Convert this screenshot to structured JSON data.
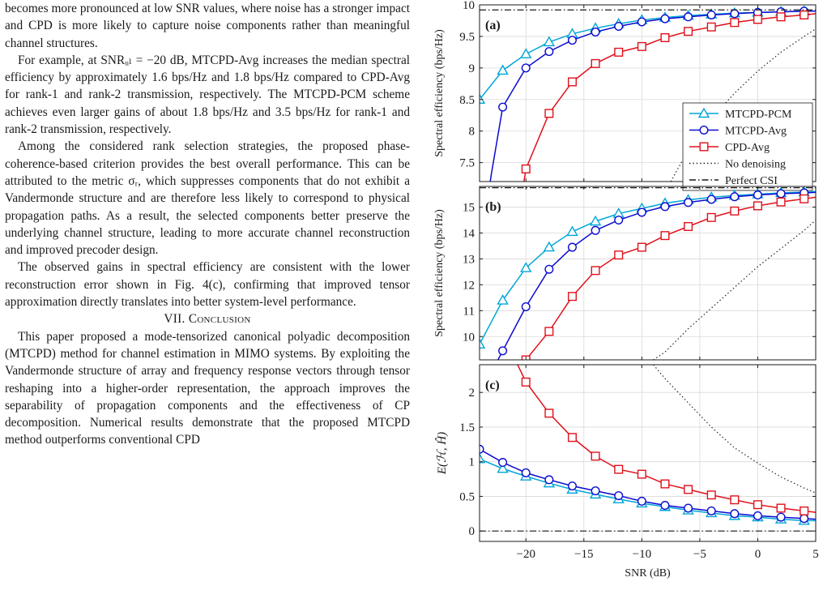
{
  "text": {
    "p0": "becomes more pronounced at low SNR values, where noise has a stronger impact and CPD is more likely to capture noise components rather than meaningful channel structures.",
    "p1": "For example, at SNRᵤₗ = −20 dB, MTCPD-Avg increases the median spectral efficiency by approximately 1.6 bps/Hz and 1.8 bps/Hz compared to CPD-Avg for rank-1 and rank-2 transmission, respectively. The MTCPD-PCM scheme achieves even larger gains of about 1.8 bps/Hz and 3.5 bps/Hz for rank-1 and rank-2 transmission, respectively.",
    "p2": "Among the considered rank selection strategies, the proposed phase-coherence-based criterion provides the best overall performance. This can be attributed to the metric σᵣ, which suppresses components that do not exhibit a Vandermonde structure and are therefore less likely to correspond to physical propagation paths. As a result, the selected components better preserve the underlying channel structure, leading to more accurate channel reconstruction and improved precoder design.",
    "p3": "The observed gains in spectral efficiency are consistent with the lower reconstruction error shown in Fig. 4(c), confirming that improved tensor approximation directly translates into better system-level performance.",
    "section_num": "VII.",
    "section_title": "Conclusion",
    "p4": "This paper proposed a mode-tensorized canonical polyadic decomposition (MTCPD) method for channel estimation in MIMO systems. By exploiting the Vandermonde structure of array and frequency response vectors through tensor reshaping into a higher-order representation, the approach improves the separability of propagation components and the effectiveness of CP decomposition. Numerical results demonstrate that the proposed MTCPD method outperforms conventional CPD"
  },
  "chart_data": [
    {
      "type": "line",
      "panel": "(a)",
      "ylabel": "Spectral efficiency (bps/Hz)",
      "xlim": [
        -24,
        5
      ],
      "ylim": [
        7.2,
        10
      ],
      "yticks": [
        7.5,
        8,
        8.5,
        9,
        9.5,
        10
      ],
      "grid": true,
      "legend": "right",
      "series": [
        {
          "name": "MTCPD-PCM",
          "x": [
            -24,
            -22,
            -20,
            -18,
            -16,
            -14,
            -12,
            -10,
            -8,
            -6,
            -4,
            -2,
            0,
            2,
            4,
            5
          ],
          "y": [
            8.5,
            8.96,
            9.22,
            9.41,
            9.54,
            9.63,
            9.7,
            9.76,
            9.8,
            9.83,
            9.85,
            9.87,
            9.88,
            9.89,
            9.9,
            9.9
          ]
        },
        {
          "name": "MTCPD-Avg",
          "x": [
            -24,
            -23,
            -22,
            -20,
            -18,
            -16,
            -14,
            -12,
            -10,
            -8,
            -6,
            -4,
            -2,
            0,
            2,
            4,
            5
          ],
          "y": [
            6.0,
            7.3,
            8.38,
            9.0,
            9.26,
            9.44,
            9.57,
            9.66,
            9.73,
            9.78,
            9.81,
            9.84,
            9.86,
            9.88,
            9.89,
            9.9,
            9.9
          ]
        },
        {
          "name": "CPD-Avg",
          "x": [
            -21,
            -20,
            -18,
            -16,
            -14,
            -12,
            -10,
            -8,
            -6,
            -4,
            -2,
            0,
            2,
            4,
            5
          ],
          "y": [
            6.2,
            7.4,
            8.28,
            8.78,
            9.07,
            9.25,
            9.34,
            9.48,
            9.58,
            9.65,
            9.72,
            9.77,
            9.81,
            9.84,
            9.86
          ]
        },
        {
          "name": "No denoising",
          "x": [
            -7.5,
            -6,
            -4,
            -2,
            0,
            2,
            4,
            5
          ],
          "y": [
            7.2,
            7.7,
            8.2,
            8.6,
            8.95,
            9.25,
            9.5,
            9.62
          ]
        },
        {
          "name": "Perfect CSI",
          "x": [
            -24,
            5
          ],
          "y": [
            9.92,
            9.92
          ]
        }
      ]
    },
    {
      "type": "line",
      "panel": "(b)",
      "ylabel": "Spectral efficiency (bps/Hz)",
      "xlim": [
        -24,
        5
      ],
      "ylim": [
        9.1,
        15.8
      ],
      "yticks": [
        10,
        11,
        12,
        13,
        14,
        15
      ],
      "grid": true,
      "series": [
        {
          "name": "MTCPD-PCM",
          "x": [
            -24,
            -22,
            -20,
            -18,
            -16,
            -14,
            -12,
            -10,
            -8,
            -6,
            -4,
            -2,
            0,
            2,
            4,
            5
          ],
          "y": [
            9.7,
            11.4,
            12.65,
            13.45,
            14.05,
            14.45,
            14.75,
            14.95,
            15.15,
            15.28,
            15.38,
            15.45,
            15.5,
            15.55,
            15.58,
            15.6
          ]
        },
        {
          "name": "MTCPD-Avg",
          "x": [
            -23,
            -22,
            -20,
            -18,
            -16,
            -14,
            -12,
            -10,
            -8,
            -6,
            -4,
            -2,
            0,
            2,
            4,
            5
          ],
          "y": [
            8.6,
            9.45,
            11.15,
            12.6,
            13.45,
            14.1,
            14.5,
            14.8,
            15.02,
            15.18,
            15.3,
            15.4,
            15.47,
            15.52,
            15.55,
            15.57
          ]
        },
        {
          "name": "CPD-Avg",
          "x": [
            -20.5,
            -20,
            -18,
            -16,
            -14,
            -12,
            -10,
            -8,
            -6,
            -4,
            -2,
            0,
            2,
            4,
            5
          ],
          "y": [
            8.7,
            9.1,
            10.2,
            11.55,
            12.55,
            13.15,
            13.45,
            13.9,
            14.25,
            14.6,
            14.85,
            15.05,
            15.2,
            15.32,
            15.38
          ]
        },
        {
          "name": "No denoising",
          "x": [
            -9,
            -8,
            -6,
            -4,
            -2,
            0,
            2,
            4,
            5
          ],
          "y": [
            9.1,
            9.4,
            10.3,
            11.1,
            11.9,
            12.7,
            13.4,
            14.1,
            14.5
          ]
        },
        {
          "name": "Perfect CSI",
          "x": [
            -24,
            5
          ],
          "y": [
            15.75,
            15.75
          ]
        }
      ]
    },
    {
      "type": "line",
      "panel": "(c)",
      "ylabel": "E(ℋ, Ĥ)",
      "xlabel": "SNR (dB)",
      "xlim": [
        -24,
        5
      ],
      "ylim": [
        -0.15,
        2.4
      ],
      "xticks": [
        -20,
        -15,
        -10,
        -5,
        0,
        5
      ],
      "yticks": [
        0,
        0.5,
        1,
        1.5,
        2
      ],
      "grid": true,
      "series": [
        {
          "name": "MTCPD-PCM",
          "x": [
            -24,
            -22,
            -20,
            -18,
            -16,
            -14,
            -12,
            -10,
            -8,
            -6,
            -4,
            -2,
            0,
            2,
            4,
            5
          ],
          "y": [
            1.04,
            0.9,
            0.79,
            0.69,
            0.6,
            0.53,
            0.46,
            0.4,
            0.35,
            0.3,
            0.26,
            0.22,
            0.2,
            0.17,
            0.15,
            0.15
          ]
        },
        {
          "name": "MTCPD-Avg",
          "x": [
            -24,
            -22,
            -20,
            -18,
            -16,
            -14,
            -12,
            -10,
            -8,
            -6,
            -4,
            -2,
            0,
            2,
            4,
            5
          ],
          "y": [
            1.18,
            0.99,
            0.84,
            0.74,
            0.65,
            0.58,
            0.51,
            0.43,
            0.37,
            0.33,
            0.29,
            0.25,
            0.22,
            0.2,
            0.18,
            0.17
          ]
        },
        {
          "name": "CPD-Avg",
          "x": [
            -21,
            -20,
            -18,
            -16,
            -14,
            -12,
            -10,
            -8,
            -6,
            -4,
            -2,
            0,
            2,
            4,
            5
          ],
          "y": [
            2.5,
            2.15,
            1.7,
            1.35,
            1.08,
            0.89,
            0.82,
            0.68,
            0.6,
            0.52,
            0.45,
            0.38,
            0.33,
            0.29,
            0.27
          ]
        },
        {
          "name": "No denoising",
          "x": [
            -9,
            -8,
            -6,
            -4,
            -2,
            0,
            2,
            4,
            5
          ],
          "y": [
            2.4,
            2.2,
            1.85,
            1.5,
            1.2,
            0.98,
            0.78,
            0.62,
            0.55
          ]
        },
        {
          "name": "Perfect CSI",
          "x": [
            -24,
            5
          ],
          "y": [
            0,
            0
          ]
        }
      ]
    }
  ],
  "colors": {
    "MTCPD-PCM": "#00a6d6",
    "MTCPD-Avg": "#0a0ad0",
    "CPD-Avg": "#e0111c",
    "No denoising": "#1a1a1a",
    "Perfect CSI": "#1a1a1a"
  }
}
